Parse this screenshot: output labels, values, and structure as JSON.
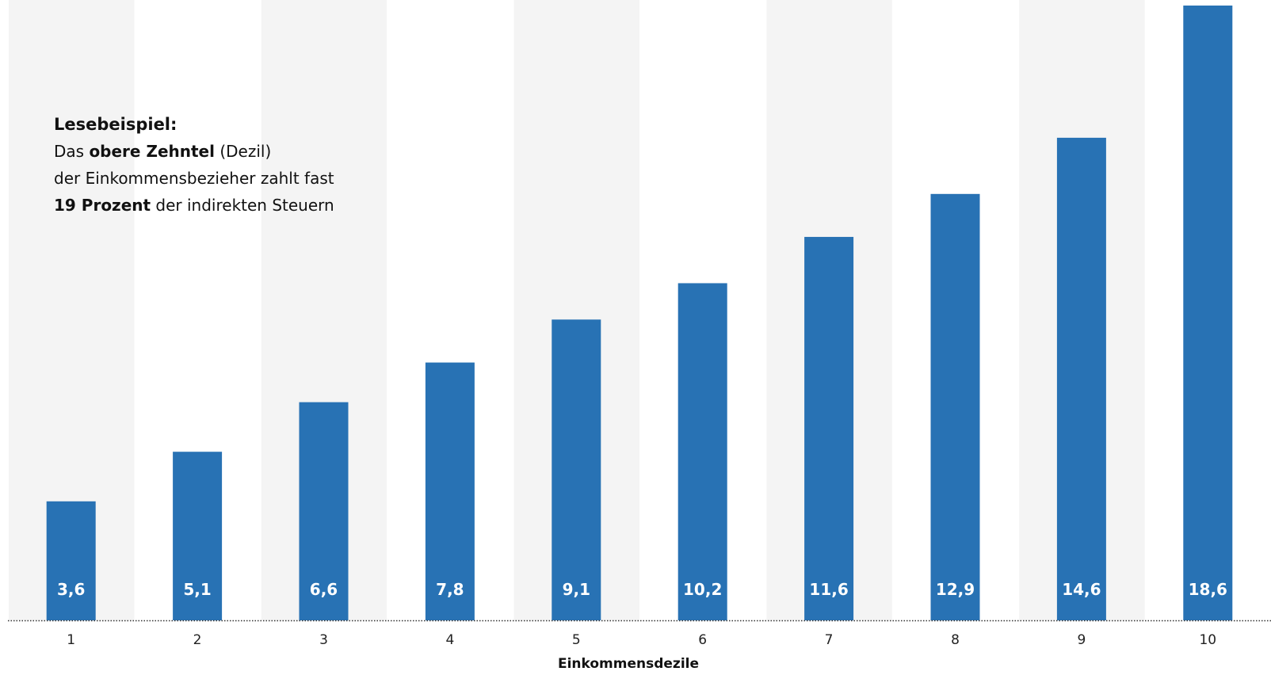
{
  "chart_data": {
    "type": "bar",
    "categories": [
      "1",
      "2",
      "3",
      "4",
      "5",
      "6",
      "7",
      "8",
      "9",
      "10"
    ],
    "values": [
      3.6,
      5.1,
      6.6,
      7.8,
      9.1,
      10.2,
      11.6,
      12.9,
      14.6,
      18.6
    ],
    "value_labels": [
      "3,6",
      "5,1",
      "6,6",
      "7,8",
      "9,1",
      "10,2",
      "11,6",
      "12,9",
      "14,6",
      "18,6"
    ],
    "title": "",
    "xlabel": "Einkommensdezile",
    "ylabel": "",
    "ylim": [
      0,
      18.6
    ],
    "grid": false,
    "alternating_band_shading": true,
    "bar_color": "#2872b4",
    "band_color": "#f4f4f4",
    "value_label_color": "#ffffff",
    "axis_line_style": "dotted"
  },
  "note": {
    "heading": "Lesebeispiel:",
    "line1_pre": "Das ",
    "line1_bold": "obere Zehntel",
    "line1_post": " (Dezil)",
    "line2": "der Einkommensbezieher zahlt fast",
    "line3_bold": "19 Prozent",
    "line3_post": " der indirekten Steuern"
  }
}
